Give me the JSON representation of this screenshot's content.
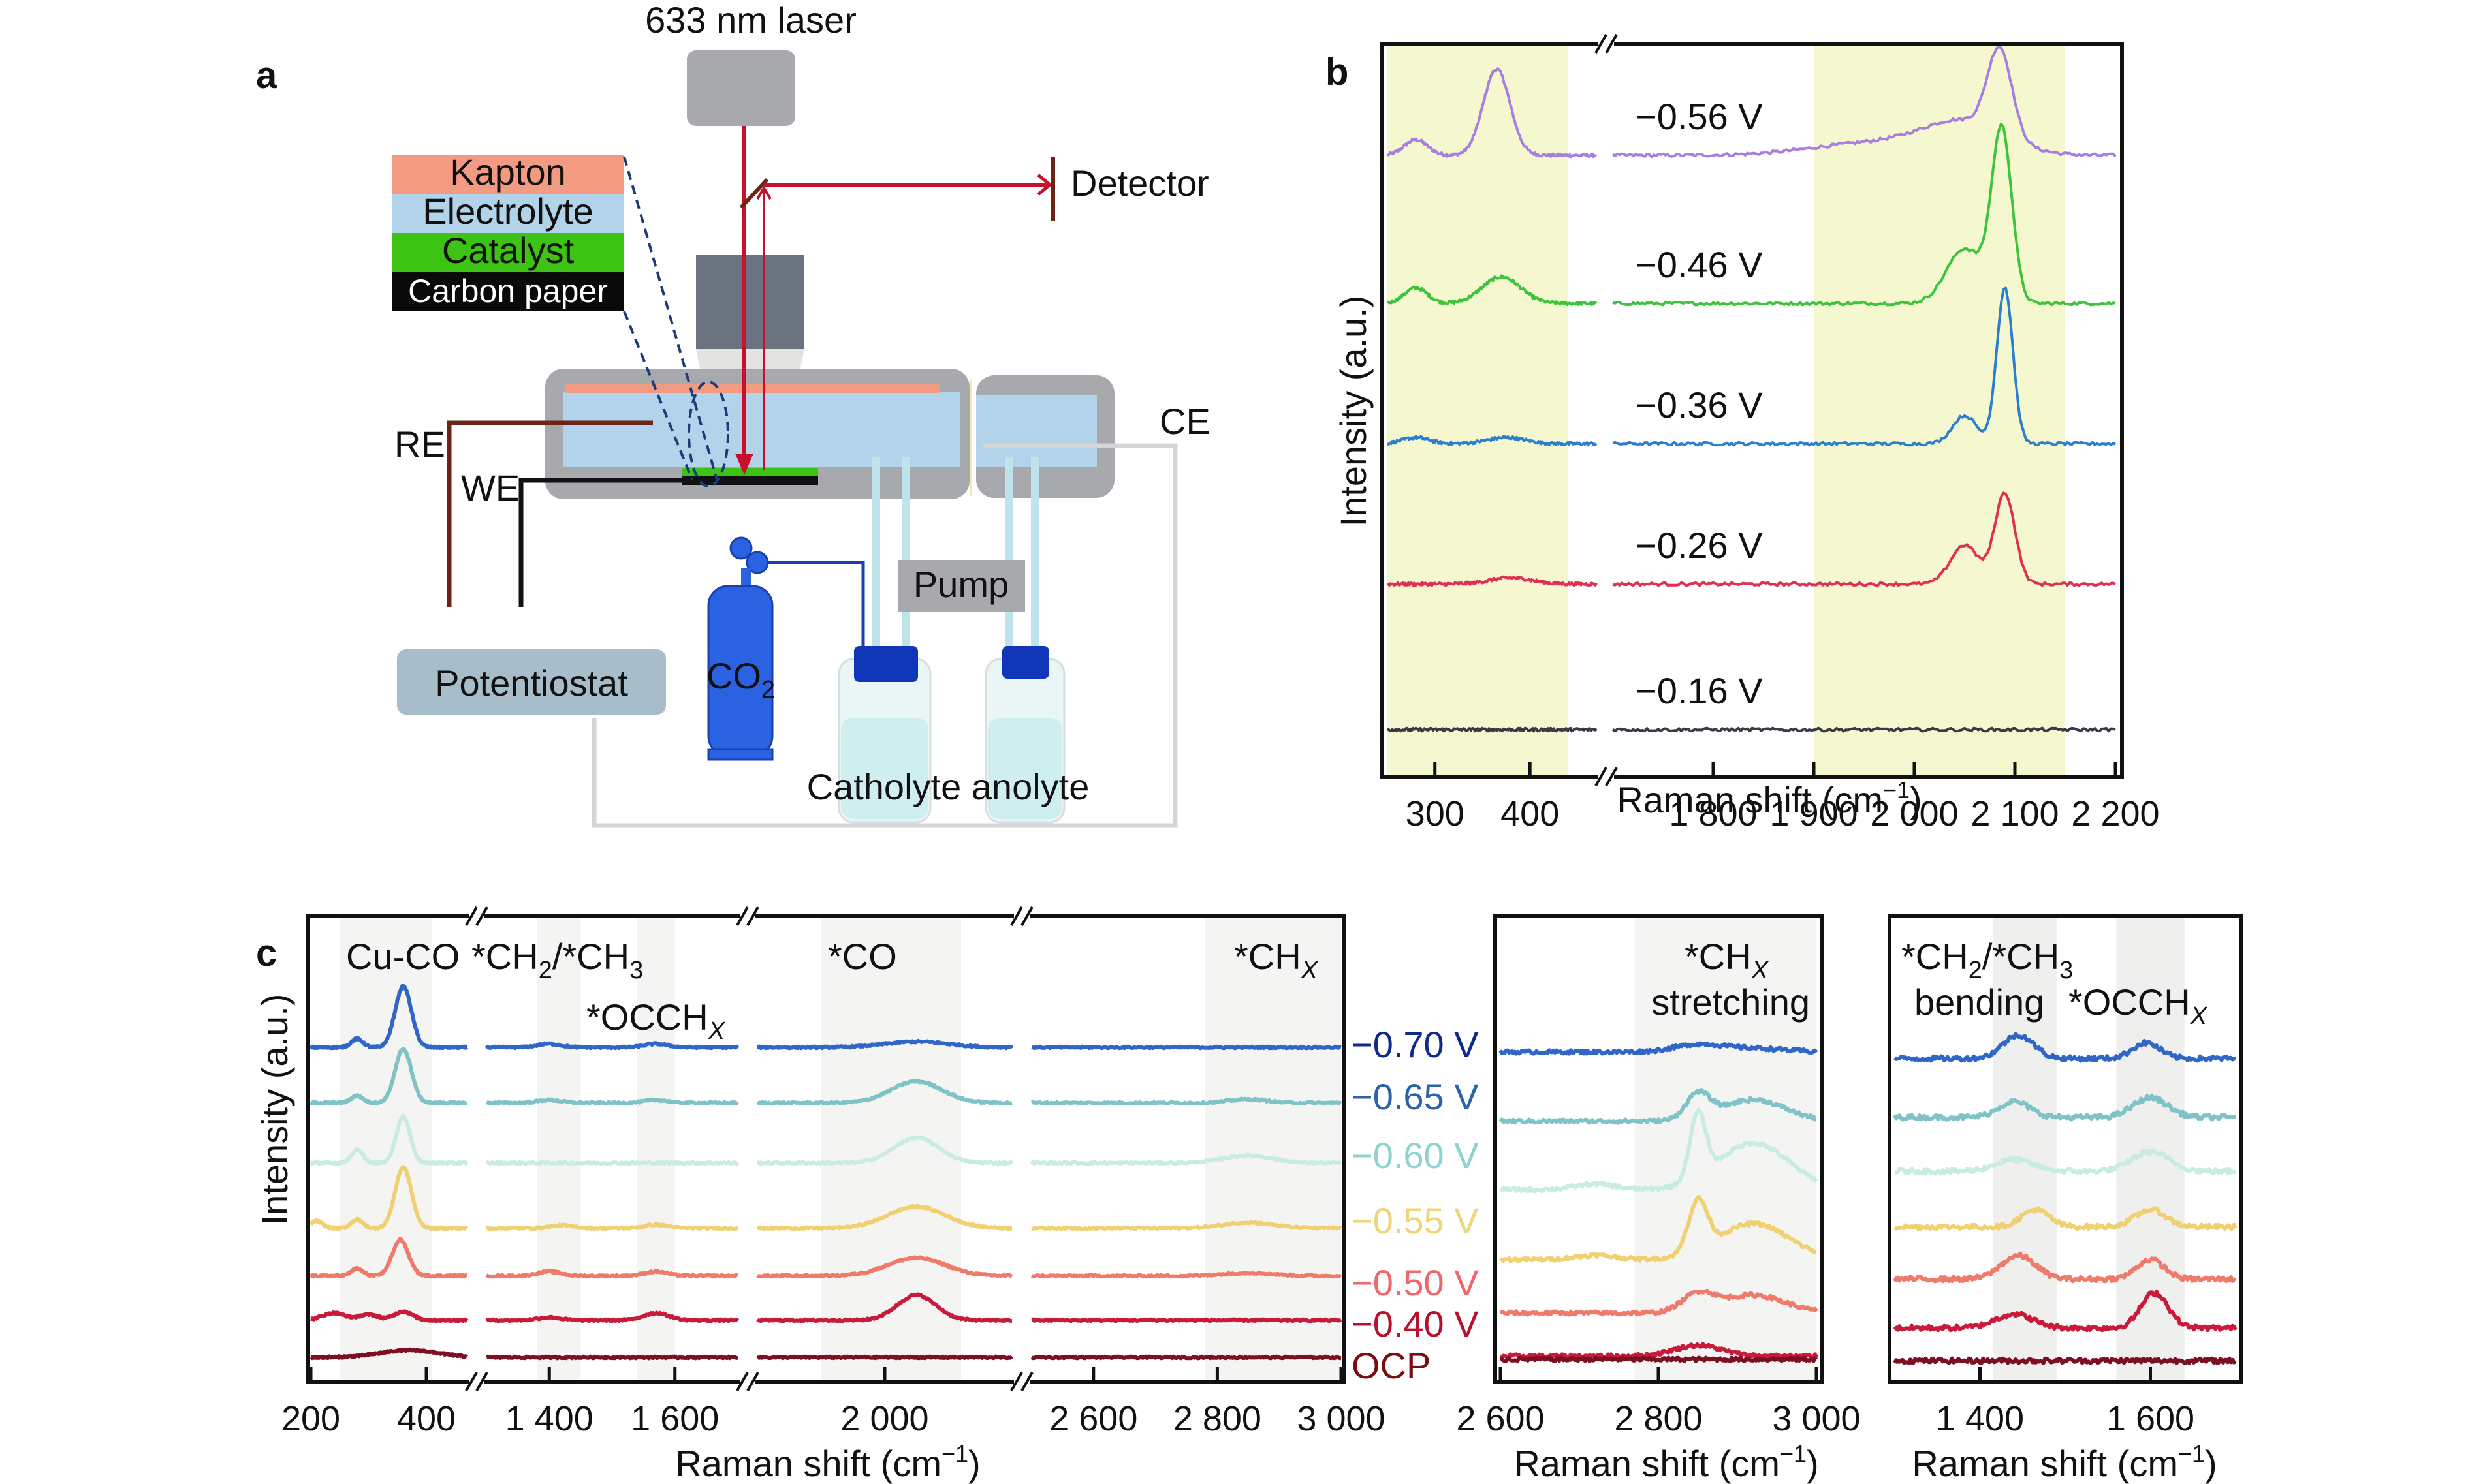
{
  "figure": {
    "panel_letters": {
      "a": "a",
      "b": "b",
      "c": "c"
    }
  },
  "panel_a": {
    "laser_label": "633 nm laser",
    "detector_label": "Detector",
    "layers": [
      "Kapton",
      "Electrolyte",
      "Catalyst",
      "Carbon paper"
    ],
    "layer_colors": [
      "#f29b82",
      "#b3d3ea",
      "#3cc314",
      "#0a0a0a"
    ],
    "electrode_labels": {
      "re": "RE",
      "we": "WE",
      "ce": "CE"
    },
    "pump_label": "Pump",
    "potentiostat_label": "Potentiostat",
    "gas_label_main": "CO",
    "gas_label_sub": "2",
    "reservoir_label": "Catholyte anolyte",
    "colors": {
      "laser": "#c8102e",
      "cell_frame": "#a7a9ac",
      "gas": "#2b62e2",
      "tube": "#bfe3ea",
      "cap": "#1236b8"
    }
  },
  "chart_data": [
    {
      "id": "b",
      "type": "line",
      "title": "",
      "xlabel": "Raman shift (cm⁻¹)",
      "ylabel": "Intensity (a.u.)",
      "x_segments": [
        [
          250,
          470
        ],
        [
          1700,
          2200
        ]
      ],
      "x_ticks": [
        300,
        400,
        1800,
        1900,
        2000,
        2100,
        2200
      ],
      "x_tick_labels": [
        "300",
        "400",
        "1 800",
        "1 900",
        "2 000",
        "2 100",
        "2 200"
      ],
      "highlight_regions": [
        [
          250,
          440
        ],
        [
          1900,
          2150
        ]
      ],
      "highlight_color": "#f5f8cf",
      "series": [
        {
          "name": "−0.56 V",
          "color": "#a77fe0",
          "offset": 4,
          "peaks": [
            [
              280,
              0.1,
              12
            ],
            [
              365,
              0.55,
              14
            ],
            [
              2050,
              0.2,
              40
            ],
            [
              2085,
              0.55,
              12
            ],
            [
              1960,
              0.08,
              60
            ]
          ]
        },
        {
          "name": "−0.46 V",
          "color": "#3dc43c",
          "offset": 3,
          "peaks": [
            [
              280,
              0.1,
              12
            ],
            [
              370,
              0.17,
              20
            ],
            [
              2050,
              0.35,
              18
            ],
            [
              2087,
              1.1,
              10
            ]
          ]
        },
        {
          "name": "−0.36 V",
          "color": "#2a7fd0",
          "offset": 2,
          "peaks": [
            [
              280,
              0.04,
              14
            ],
            [
              375,
              0.04,
              20
            ],
            [
              2050,
              0.18,
              12
            ],
            [
              2090,
              1.0,
              8
            ]
          ]
        },
        {
          "name": "−0.26 V",
          "color": "#e0304f",
          "offset": 1,
          "peaks": [
            [
              380,
              0.04,
              22
            ],
            [
              2050,
              0.25,
              14
            ],
            [
              2090,
              0.58,
              10
            ]
          ]
        },
        {
          "name": "−0.16 V",
          "color": "#3a3a46",
          "offset": 0,
          "peaks": []
        }
      ],
      "legend": "inline-labels"
    },
    {
      "id": "c-main",
      "type": "line",
      "xlabel": "Raman shift (cm⁻¹)",
      "ylabel": "Intensity (a.u.)",
      "x_segments": [
        [
          200,
          470
        ],
        [
          1300,
          1700
        ],
        [
          1800,
          2200
        ],
        [
          2500,
          3000
        ]
      ],
      "x_ticks": [
        200,
        400,
        1400,
        1600,
        2000,
        2600,
        2800,
        3000
      ],
      "x_tick_labels": [
        "200",
        "400",
        "1 400",
        "1 600",
        "2 000",
        "2 600",
        "2 800",
        "3 000"
      ],
      "highlight_regions": [
        [
          250,
          410
        ],
        [
          1380,
          1450
        ],
        [
          1540,
          1600
        ],
        [
          1900,
          2120
        ],
        [
          2780,
          3000
        ]
      ],
      "annotations": [
        "Cu-CO",
        "*CH₂/*CH₃",
        "*OCCHₓ",
        "*CO",
        "*CHₓ"
      ],
      "series": [
        {
          "name": "−0.70 V",
          "color": "#2f66c7",
          "offset": 6,
          "peaks": [
            [
              280,
              0.12,
              10
            ],
            [
              360,
              0.85,
              14
            ],
            [
              1400,
              0.05,
              18
            ],
            [
              1570,
              0.05,
              18
            ],
            [
              2050,
              0.08,
              50
            ]
          ]
        },
        {
          "name": "−0.65 V",
          "color": "#7fc3c7",
          "offset": 5,
          "peaks": [
            [
              280,
              0.1,
              10
            ],
            [
              360,
              0.75,
              14
            ],
            [
              1400,
              0.04,
              18
            ],
            [
              1570,
              0.04,
              18
            ],
            [
              2050,
              0.3,
              40
            ],
            [
              2850,
              0.05,
              30
            ]
          ]
        },
        {
          "name": "−0.60 V",
          "color": "#c8ece4",
          "offset": 4,
          "peaks": [
            [
              280,
              0.18,
              10
            ],
            [
              360,
              0.65,
              12
            ],
            [
              2050,
              0.35,
              35
            ],
            [
              2850,
              0.1,
              40
            ]
          ]
        },
        {
          "name": "−0.55 V",
          "color": "#f1d072",
          "offset": 3,
          "peaks": [
            [
              210,
              0.1,
              10
            ],
            [
              280,
              0.12,
              10
            ],
            [
              360,
              0.85,
              14
            ],
            [
              1420,
              0.04,
              18
            ],
            [
              1570,
              0.05,
              18
            ],
            [
              2050,
              0.3,
              45
            ],
            [
              2850,
              0.08,
              40
            ]
          ]
        },
        {
          "name": "−0.50 V",
          "color": "#f07a6a",
          "offset": 2,
          "peaks": [
            [
              280,
              0.1,
              10
            ],
            [
              355,
              0.5,
              14
            ],
            [
              1400,
              0.06,
              18
            ],
            [
              1570,
              0.06,
              18
            ],
            [
              2050,
              0.25,
              45
            ],
            [
              2850,
              0.04,
              40
            ]
          ]
        },
        {
          "name": "−0.40 V",
          "color": "#c91a3a",
          "offset": 1,
          "peaks": [
            [
              240,
              0.1,
              20
            ],
            [
              300,
              0.08,
              16
            ],
            [
              360,
              0.12,
              16
            ],
            [
              1400,
              0.04,
              18
            ],
            [
              1570,
              0.1,
              20
            ],
            [
              2050,
              0.35,
              30
            ]
          ]
        },
        {
          "name": "OCP",
          "color": "#7d0f22",
          "offset": 0,
          "peaks": [
            [
              370,
              0.1,
              50
            ]
          ]
        }
      ],
      "legend": "right-labels"
    },
    {
      "id": "c-stretch",
      "type": "line",
      "xlabel": "Raman shift (cm⁻¹)",
      "x_range": [
        2600,
        3000
      ],
      "x_ticks": [
        2600,
        2800,
        3000
      ],
      "x_tick_labels": [
        "2 600",
        "2 800",
        "3 000"
      ],
      "highlight_regions": [
        [
          2770,
          3000
        ]
      ],
      "annotations": [
        "*CHₓ",
        "stretching"
      ],
      "series": [
        {
          "name": "−0.70 V",
          "color": "#2f66c7",
          "peaks": [
            [
              2850,
              0.1,
              30
            ],
            [
              2920,
              0.05,
              40
            ]
          ]
        },
        {
          "name": "−0.65 V",
          "color": "#7fc3c7",
          "peaks": [
            [
              2850,
              0.35,
              15
            ],
            [
              2920,
              0.3,
              40
            ]
          ]
        },
        {
          "name": "−0.60 V",
          "color": "#c8ece4",
          "peaks": [
            [
              2720,
              0.08,
              25
            ],
            [
              2850,
              0.9,
              10
            ],
            [
              2920,
              0.65,
              45
            ]
          ]
        },
        {
          "name": "−0.55 V",
          "color": "#f1d072",
          "peaks": [
            [
              2720,
              0.06,
              25
            ],
            [
              2850,
              0.7,
              12
            ],
            [
              2920,
              0.5,
              45
            ]
          ]
        },
        {
          "name": "−0.50 V",
          "color": "#f07a6a",
          "peaks": [
            [
              2850,
              0.25,
              20
            ],
            [
              2920,
              0.25,
              40
            ]
          ]
        },
        {
          "name": "−0.40 V",
          "color": "#c91a3a",
          "peaks": [
            [
              2850,
              0.15,
              30
            ]
          ]
        },
        {
          "name": "OCP",
          "color": "#7d0f22",
          "peaks": []
        }
      ]
    },
    {
      "id": "c-bend",
      "type": "line",
      "xlabel": "Raman shift (cm⁻¹)",
      "x_range": [
        1300,
        1700
      ],
      "x_ticks": [
        1400,
        1600
      ],
      "x_tick_labels": [
        "1 400",
        "1 600"
      ],
      "highlight_regions": [
        [
          1415,
          1490
        ],
        [
          1560,
          1640
        ]
      ],
      "annotations": [
        "*CH₂/*CH₃",
        "bending",
        "*OCCHₓ"
      ],
      "series": [
        {
          "name": "−0.70 V",
          "color": "#2f66c7",
          "peaks": [
            [
              1445,
              0.3,
              18
            ],
            [
              1595,
              0.2,
              16
            ]
          ]
        },
        {
          "name": "−0.65 V",
          "color": "#7fc3c7",
          "peaks": [
            [
              1440,
              0.2,
              18
            ],
            [
              1600,
              0.25,
              20
            ]
          ]
        },
        {
          "name": "−0.60 V",
          "color": "#c8ece4",
          "peaks": [
            [
              1440,
              0.15,
              22
            ],
            [
              1600,
              0.25,
              22
            ]
          ]
        },
        {
          "name": "−0.55 V",
          "color": "#f1d072",
          "peaks": [
            [
              1465,
              0.22,
              16
            ],
            [
              1600,
              0.22,
              18
            ]
          ]
        },
        {
          "name": "−0.50 V",
          "color": "#f07a6a",
          "peaks": [
            [
              1445,
              0.3,
              20
            ],
            [
              1600,
              0.25,
              16
            ]
          ]
        },
        {
          "name": "−0.40 V",
          "color": "#c91a3a",
          "peaks": [
            [
              1440,
              0.18,
              22
            ],
            [
              1605,
              0.45,
              16
            ]
          ]
        },
        {
          "name": "OCP",
          "color": "#7d0f22",
          "peaks": []
        }
      ]
    }
  ],
  "voltage_labels_c": [
    {
      "text": "−0.70 V",
      "color": "#0d2a8c"
    },
    {
      "text": "−0.65 V",
      "color": "#2d63a8"
    },
    {
      "text": "−0.60 V",
      "color": "#8fd3d0"
    },
    {
      "text": "−0.55 V",
      "color": "#efd579"
    },
    {
      "text": "−0.50 V",
      "color": "#f2666a"
    },
    {
      "text": "−0.40 V",
      "color": "#b8102a"
    },
    {
      "text": "OCP",
      "color": "#7a0c12"
    }
  ],
  "axis_text": {
    "b_ylabel": "Intensity (a.u.)",
    "b_xlabel_main": "Raman shift (cm",
    "c_ylabel": "Intensity (a.u.)",
    "c_xlabel_main": "Raman shift (cm",
    "sup": "−1",
    "close": ")"
  },
  "annot_c": {
    "cuco": "Cu-CO",
    "ch2ch3_a": "*CH",
    "ch2ch3_sub1": "2",
    "ch2ch3_b": "/*CH",
    "ch2ch3_sub2": "3",
    "occh": "*OCCH",
    "x_sub": "X",
    "co": "*CO",
    "chx": "*CH",
    "stretching": "stretching",
    "bending": "bending"
  }
}
